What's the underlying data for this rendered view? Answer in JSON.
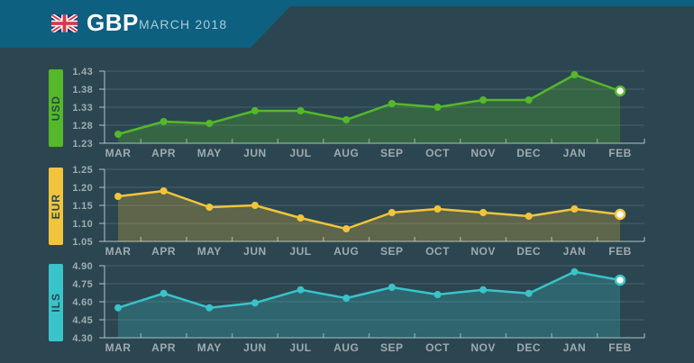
{
  "header": {
    "currency_code": "GBP",
    "period": "MARCH 2018",
    "flag": "united-kingdom",
    "background_color": "#0d6080"
  },
  "theme": {
    "background": "#2b4650",
    "axis_label_color": "#a0adb1",
    "gridline_color": "rgba(255,255,255,0.15)",
    "axis_line_color": "rgba(210,222,225,0.55)",
    "highlight_dot_color": "#ffffff"
  },
  "chart_data": [
    {
      "type": "area",
      "series_label": "USD",
      "categories": [
        "MAR",
        "APR",
        "MAY",
        "JUN",
        "JUL",
        "AUG",
        "SEP",
        "OCT",
        "NOV",
        "DEC",
        "JAN",
        "FEB"
      ],
      "values": [
        1.255,
        1.29,
        1.285,
        1.32,
        1.32,
        1.295,
        1.34,
        1.33,
        1.35,
        1.35,
        1.42,
        1.375
      ],
      "ylim": [
        1.23,
        1.43
      ],
      "yticks": [
        1.43,
        1.38,
        1.33,
        1.28,
        1.23
      ],
      "color": "#55b82b",
      "fill_color": "rgba(85,184,43,0.27)",
      "highlight_index": 11,
      "grid": true,
      "legend_position": "left-badge"
    },
    {
      "type": "area",
      "series_label": "EUR",
      "categories": [
        "MAR",
        "APR",
        "MAY",
        "JUN",
        "JUL",
        "AUG",
        "SEP",
        "OCT",
        "NOV",
        "DEC",
        "JAN",
        "FEB"
      ],
      "values": [
        1.175,
        1.19,
        1.145,
        1.15,
        1.115,
        1.085,
        1.13,
        1.14,
        1.13,
        1.12,
        1.14,
        1.125
      ],
      "ylim": [
        1.05,
        1.25
      ],
      "yticks": [
        1.25,
        1.2,
        1.15,
        1.1,
        1.05
      ],
      "color": "#f2c43c",
      "fill_color": "rgba(242,196,60,0.25)",
      "highlight_index": 11,
      "grid": true,
      "legend_position": "left-badge"
    },
    {
      "type": "area",
      "series_label": "ILS",
      "categories": [
        "MAR",
        "APR",
        "MAY",
        "JUN",
        "JUL",
        "AUG",
        "SEP",
        "OCT",
        "NOV",
        "DEC",
        "JAN",
        "FEB"
      ],
      "values": [
        4.55,
        4.67,
        4.55,
        4.59,
        4.7,
        4.63,
        4.72,
        4.66,
        4.7,
        4.67,
        4.85,
        4.78
      ],
      "ylim": [
        4.3,
        4.9
      ],
      "yticks": [
        4.9,
        4.75,
        4.6,
        4.45,
        4.3
      ],
      "color": "#3ac3c9",
      "fill_color": "rgba(58,195,201,0.25)",
      "highlight_index": 11,
      "grid": true,
      "legend_position": "left-badge"
    }
  ]
}
